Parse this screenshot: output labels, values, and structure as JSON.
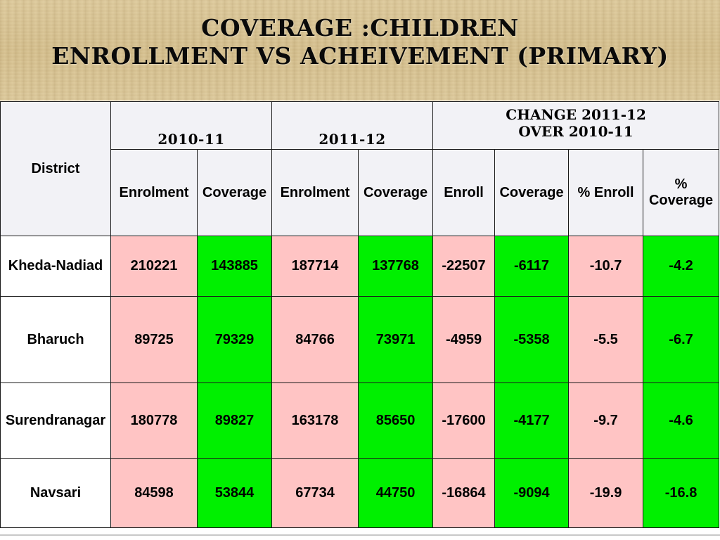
{
  "title": {
    "line1": "Coverage :Children",
    "line2": "Enrollment vs Acheivement (Primary)"
  },
  "table": {
    "district_header": "District",
    "year1": "2010-11",
    "year2": "2011-12",
    "change_line1": "Change 2011-12",
    "change_line2": "over 2010-11",
    "sub_headers": [
      "Enrolment",
      "Coverage",
      "Enrolment",
      "Coverage",
      "Enroll",
      "Coverage",
      "% Enroll",
      "% Coverage"
    ],
    "rows": [
      {
        "district": "Kheda-Nadiad",
        "cells": [
          "210221",
          "143885",
          "187714",
          "137768",
          "-22507",
          "-6117",
          "-10.7",
          "-4.2"
        ]
      },
      {
        "district": "Bharuch",
        "cells": [
          "89725",
          "79329",
          "84766",
          "73971",
          "-4959",
          "-5358",
          "-5.5",
          "-6.7"
        ]
      },
      {
        "district": "Surendranagar",
        "cells": [
          "180778",
          "89827",
          "163178",
          "85650",
          "-17600",
          "-4177",
          "-9.7",
          "-4.6"
        ]
      },
      {
        "district": "Navsari",
        "cells": [
          "84598",
          "53844",
          "67734",
          "44750",
          "-16864",
          "-9094",
          "-19.9",
          "-16.8"
        ]
      }
    ]
  },
  "colors": {
    "enrolment_cell": "#ffc4c4",
    "coverage_cell": "#00f000",
    "header_bg": "#f2f2f6"
  }
}
